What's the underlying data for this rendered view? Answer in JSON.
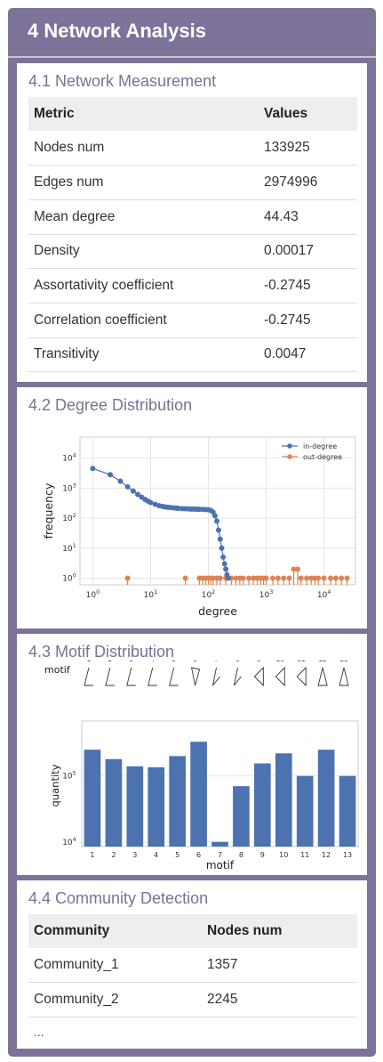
{
  "header": {
    "title": "4 Network Analysis"
  },
  "measurement": {
    "title": "4.1 Network Measurement",
    "columns": [
      "Metric",
      "Values"
    ],
    "rows": [
      [
        "Nodes num",
        "133925"
      ],
      [
        "Edges num",
        "2974996"
      ],
      [
        "Mean degree",
        "44.43"
      ],
      [
        "Density",
        "0.00017"
      ],
      [
        "Assortativity coefficient",
        "-0.2745"
      ],
      [
        "Correlation coefficient",
        "-0.2745"
      ],
      [
        "Transitivity",
        "0.0047"
      ]
    ]
  },
  "degree": {
    "title": "4.2 Degree Distribution",
    "chart_data": {
      "type": "scatter",
      "xscale": "log",
      "yscale": "log",
      "xlabel": "degree",
      "ylabel": "frequency",
      "xlim": [
        0.6,
        35000
      ],
      "ylim": [
        0.6,
        50000
      ],
      "xticks": [
        1,
        10,
        100,
        1000,
        10000
      ],
      "yticks": [
        1,
        10,
        100,
        1000,
        10000
      ],
      "legend_position": "top-right",
      "series": [
        {
          "name": "in-degree",
          "color": "#4c72b0",
          "style": "line-markers",
          "x": [
            1,
            2,
            3,
            4,
            5,
            6,
            7,
            8,
            9,
            10,
            12,
            14,
            16,
            18,
            20,
            22,
            25,
            28,
            30,
            35,
            40,
            45,
            50,
            55,
            60,
            65,
            70,
            80,
            90,
            100,
            110,
            120,
            130,
            140,
            150,
            160,
            170,
            180,
            190,
            200,
            210,
            220
          ],
          "y": [
            4500,
            2800,
            1700,
            1100,
            800,
            620,
            500,
            420,
            370,
            330,
            290,
            260,
            245,
            235,
            230,
            225,
            220,
            215,
            212,
            208,
            205,
            203,
            201,
            200,
            199,
            198,
            197,
            195,
            193,
            190,
            180,
            160,
            120,
            80,
            40,
            20,
            10,
            5,
            3,
            2,
            1.3,
            1
          ]
        },
        {
          "name": "out-degree",
          "color": "#dd8452",
          "style": "stem",
          "x": [
            4,
            40,
            70,
            80,
            90,
            100,
            110,
            120,
            140,
            160,
            200,
            250,
            300,
            350,
            400,
            500,
            600,
            700,
            800,
            900,
            1000,
            1300,
            1600,
            2000,
            2500,
            3000,
            3500,
            4000,
            5000,
            6000,
            7000,
            8000,
            10000,
            13000,
            16000,
            20000,
            25000
          ],
          "y": [
            1,
            1,
            1,
            1,
            1,
            1,
            1,
            1,
            1,
            1,
            1,
            1,
            1,
            1,
            1,
            1,
            1,
            1,
            1,
            1,
            1,
            1,
            1,
            1,
            1,
            2,
            2,
            1,
            1,
            1,
            1,
            1,
            1,
            1,
            1,
            1,
            1
          ]
        }
      ]
    }
  },
  "motif": {
    "title": "4.3 Motif Distribution",
    "row_label": "motif",
    "chart_data": {
      "type": "bar",
      "yscale": "log",
      "xlabel": "motif",
      "ylabel": "quantity",
      "ylim": [
        8500,
        600000
      ],
      "yticks": [
        10000,
        100000
      ],
      "color": "#4c72b0",
      "categories": [
        "1",
        "2",
        "3",
        "4",
        "5",
        "6",
        "7",
        "8",
        "9",
        "10",
        "11",
        "12",
        "13"
      ],
      "values": [
        250000,
        180000,
        140000,
        135000,
        200000,
        330000,
        10000,
        70000,
        155000,
        220000,
        100000,
        250000,
        100000
      ]
    }
  },
  "community": {
    "title": "4.4 Community Detection",
    "columns": [
      "Community",
      "Nodes num"
    ],
    "rows": [
      [
        "Community_1",
        "1357"
      ],
      [
        "Community_2",
        "2245"
      ]
    ],
    "ellipsis": "..."
  }
}
